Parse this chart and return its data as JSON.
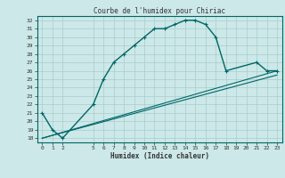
{
  "title": "Courbe de l'humidex pour Chiriac",
  "xlabel": "Humidex (Indice chaleur)",
  "bg_color": "#cce8e8",
  "grid_color": "#aacccc",
  "line_color": "#006666",
  "ylim": [
    17.5,
    32.5
  ],
  "xlim": [
    -0.5,
    23.5
  ],
  "yticks": [
    18,
    19,
    20,
    21,
    22,
    23,
    24,
    25,
    26,
    27,
    28,
    29,
    30,
    31,
    32
  ],
  "xticks": [
    0,
    1,
    2,
    5,
    6,
    7,
    8,
    9,
    10,
    11,
    12,
    13,
    14,
    15,
    16,
    17,
    18,
    19,
    20,
    21,
    22,
    23
  ],
  "line1_x": [
    0,
    1,
    2,
    5,
    6,
    7,
    8,
    9,
    10,
    11,
    12,
    13,
    14,
    15,
    16,
    17,
    18,
    21,
    22,
    23
  ],
  "line1_y": [
    21,
    19,
    18,
    22,
    25,
    27,
    28,
    29,
    30,
    31,
    31,
    31.5,
    32,
    32,
    31.5,
    30,
    26,
    27,
    26,
    26
  ],
  "line2_x": [
    0,
    23
  ],
  "line2_y": [
    18,
    26
  ],
  "line3_x": [
    0,
    23
  ],
  "line3_y": [
    18,
    25.5
  ],
  "title_fontsize": 5.5,
  "xlabel_fontsize": 5.5,
  "tick_fontsize": 4.5
}
